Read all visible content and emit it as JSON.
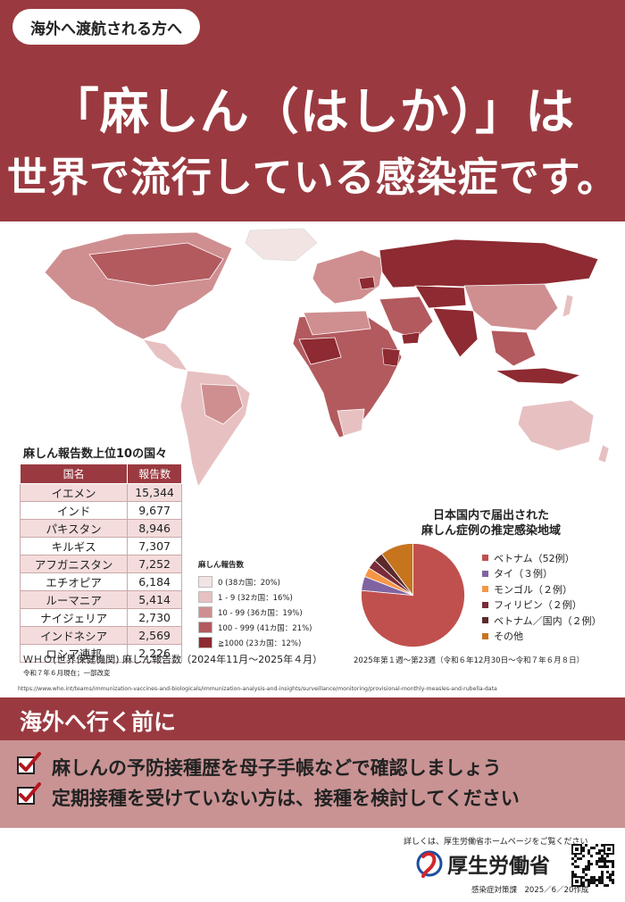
{
  "header": {
    "tag": "海外へ渡航される方へ",
    "title_line1": "「麻しん（はしか）」は",
    "title_line2": "世界で流行している感染症です。"
  },
  "table": {
    "title": "麻しん報告数上位10の国々",
    "headers": [
      "国名",
      "報告数"
    ],
    "rows": [
      [
        "イエメン",
        "15,344"
      ],
      [
        "インド",
        "9,677"
      ],
      [
        "パキスタン",
        "8,946"
      ],
      [
        "キルギス",
        "7,307"
      ],
      [
        "アフガニスタン",
        "7,252"
      ],
      [
        "エチオピア",
        "6,184"
      ],
      [
        "ルーマニア",
        "5,414"
      ],
      [
        "ナイジェリア",
        "2,730"
      ],
      [
        "インドネシア",
        "2,569"
      ],
      [
        "ロシア連邦",
        "2,226"
      ]
    ]
  },
  "map_legend": {
    "title": "麻しん報告数",
    "items": [
      {
        "label": "0 (38カ国：20%)",
        "color": "#f3e4e4"
      },
      {
        "label": "1 - 9 (32カ国：16%)",
        "color": "#e7c1c2"
      },
      {
        "label": "10 - 99 (36カ国：19%)",
        "color": "#cf8f91"
      },
      {
        "label": "100 - 999 (41カ国：21%)",
        "color": "#b35a5e"
      },
      {
        "label": "≧1000 (23カ国：12%)",
        "color": "#8e2a31"
      }
    ]
  },
  "who_note": "ＷＨＯ(世界保健機関) 麻しん報告数（2024年11月～2025年４月）",
  "who_date": "令和７年６月現在；一部改変",
  "source_url": "https://www.who.int/teams/immunization-vaccines-and-biologicals/immunization-analysis-and-insights/surveillance/monitoring/provisional-monthly-measles-and-rubella-data",
  "pie": {
    "title_line1": "日本国内で届出された",
    "title_line2": "麻しん症例の推定感染地域",
    "footnote": "2025年第１週～第23週（令和６年12月30日～令和７年６月８日）"
  },
  "chart_data": {
    "type": "pie",
    "labels": [
      "ベトナム（52例）",
      "タイ（３例）",
      "モンゴル（２例）",
      "フィリピン（２例）",
      "ベトナム／国内（２例）",
      "その他"
    ],
    "values": [
      52,
      3,
      2,
      2,
      2,
      7
    ],
    "colors": [
      "#c0504d",
      "#8064a2",
      "#f79646",
      "#7b2c3a",
      "#5a2a2a",
      "#c7741f"
    ]
  },
  "advice": {
    "title": "海外へ行く前に",
    "items": [
      "麻しんの予防接種歴を母子手帳などで確認しましょう",
      "定期接種を受けていない方は、接種を検討してください"
    ]
  },
  "footer": {
    "note": "詳しくは、厚生労働省ホームページをご覧ください",
    "ministry": "厚生労働省",
    "small": "感染症対策課　2025／6／20作成"
  }
}
